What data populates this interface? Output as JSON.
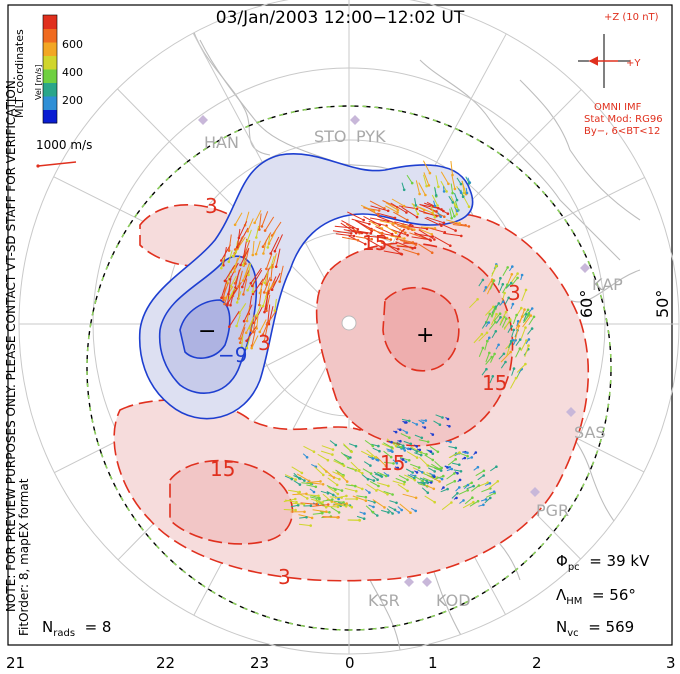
{
  "title": "03/Jan/2003 12:00−12:02 UT",
  "coord_label": "MLT coordinates",
  "colorbar": {
    "unit_label": "Vel [m/s]",
    "ticks": [
      "600",
      "400",
      "200"
    ],
    "colors": [
      "#0a1ed2",
      "#2f8fd6",
      "#2aa68a",
      "#6fd041",
      "#d0d52c",
      "#f2a623",
      "#ef6a1f",
      "#e0301e"
    ]
  },
  "scale_vector_label": "1000 m/s",
  "notes": {
    "line1": "NOTE: FOR PREVIEW PURPOSES ONLY. PLEASE CONTACT VT-SD STAFF FOR VERIFICATION.",
    "line2": "FitOrder: 8, mapEX format"
  },
  "imf": {
    "z_label": "+Z (10 nT)",
    "y_label": "+Y",
    "source": "OMNI IMF",
    "model": "Stat Mod: RG96",
    "bt": "By−, 6<BT<12"
  },
  "stations": [
    "HAN",
    "STO",
    "PYK",
    "KAP",
    "SAS",
    "PGR",
    "KSR",
    "KOD"
  ],
  "latitude_labels": [
    "60°",
    "50°"
  ],
  "contour_labels": [
    "3",
    "15",
    "−9",
    "3",
    "3",
    "15",
    "15",
    "15",
    "3"
  ],
  "potential_markers": {
    "min": "−",
    "max": "+"
  },
  "stats": {
    "phi_pc": {
      "symbol": "Φ",
      "sub": "pc",
      "value": "= 39 kV"
    },
    "lambda_hm": {
      "symbol": "Λ",
      "sub": "HM",
      "value": "= 56°"
    },
    "n_vc": {
      "symbol": "N",
      "sub": "vc",
      "value": "= 569"
    },
    "n_rads": {
      "symbol": "N",
      "sub": "rads",
      "value": "= 8"
    }
  },
  "mlt_axis": [
    "21",
    "22",
    "23",
    "0",
    "1",
    "2",
    "3"
  ]
}
